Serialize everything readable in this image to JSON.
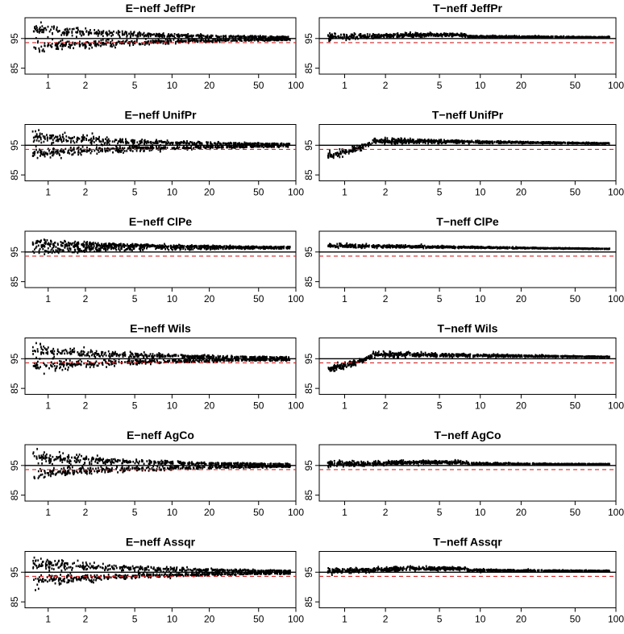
{
  "chart_data": {
    "type": "scatter",
    "layout": {
      "rows": 6,
      "cols": 2
    },
    "x_scale": "log",
    "xlim": [
      0.65,
      100
    ],
    "ylim": [
      83,
      102
    ],
    "x_ticks": [
      1,
      2,
      5,
      10,
      20,
      50,
      100
    ],
    "x_tick_labels": [
      "1",
      "2",
      "5",
      "10",
      "20",
      "50",
      "100"
    ],
    "y_ticks": [
      85,
      95
    ],
    "y_tick_labels": [
      "85",
      "95"
    ],
    "line_colors": {
      "points": "#000000",
      "nominal_line": "#000000",
      "reference_line": "#d62728"
    },
    "panels": [
      {
        "title": "E−neff JeffPr",
        "nominal": 95,
        "reference": 93.6,
        "profile": "E",
        "strength": 1.0,
        "xmin": 0.75
      },
      {
        "title": "T−neff JeffPr",
        "nominal": 95,
        "reference": 93.6,
        "profile": "T",
        "strength": 0.7,
        "xmin": 0.75
      },
      {
        "title": "E−neff UnifPr",
        "nominal": 95,
        "reference": 93.6,
        "profile": "E",
        "strength": 0.9,
        "xmin": 0.75
      },
      {
        "title": "T−neff UnifPr",
        "nominal": 95,
        "reference": 93.6,
        "profile": "Tlow",
        "strength": 0.8,
        "xmin": 0.75
      },
      {
        "title": "E−neff ClPe",
        "nominal": 95,
        "reference": 93.6,
        "profile": "Ehigh",
        "strength": 0.7,
        "xmin": 0.75
      },
      {
        "title": "T−neff ClPe",
        "nominal": 95,
        "reference": 93.6,
        "profile": "Thigh",
        "strength": 0.4,
        "xmin": 0.75
      },
      {
        "title": "E−neff Wils",
        "nominal": 95,
        "reference": 93.6,
        "profile": "E",
        "strength": 0.9,
        "xmin": 0.75
      },
      {
        "title": "T−neff Wils",
        "nominal": 95,
        "reference": 93.6,
        "profile": "Tlow",
        "strength": 0.8,
        "xmin": 0.75
      },
      {
        "title": "E−neff AgCo",
        "nominal": 95,
        "reference": 93.6,
        "profile": "E",
        "strength": 0.9,
        "xmin": 0.75
      },
      {
        "title": "T−neff AgCo",
        "nominal": 95,
        "reference": 93.6,
        "profile": "T",
        "strength": 0.6,
        "xmin": 0.75
      },
      {
        "title": "E−neff Assqr",
        "nominal": 95,
        "reference": 93.6,
        "profile": "E",
        "strength": 1.0,
        "xmin": 0.75
      },
      {
        "title": "T−neff Assqr",
        "nominal": 95,
        "reference": 93.6,
        "profile": "T",
        "strength": 0.7,
        "xmin": 0.75
      }
    ]
  }
}
